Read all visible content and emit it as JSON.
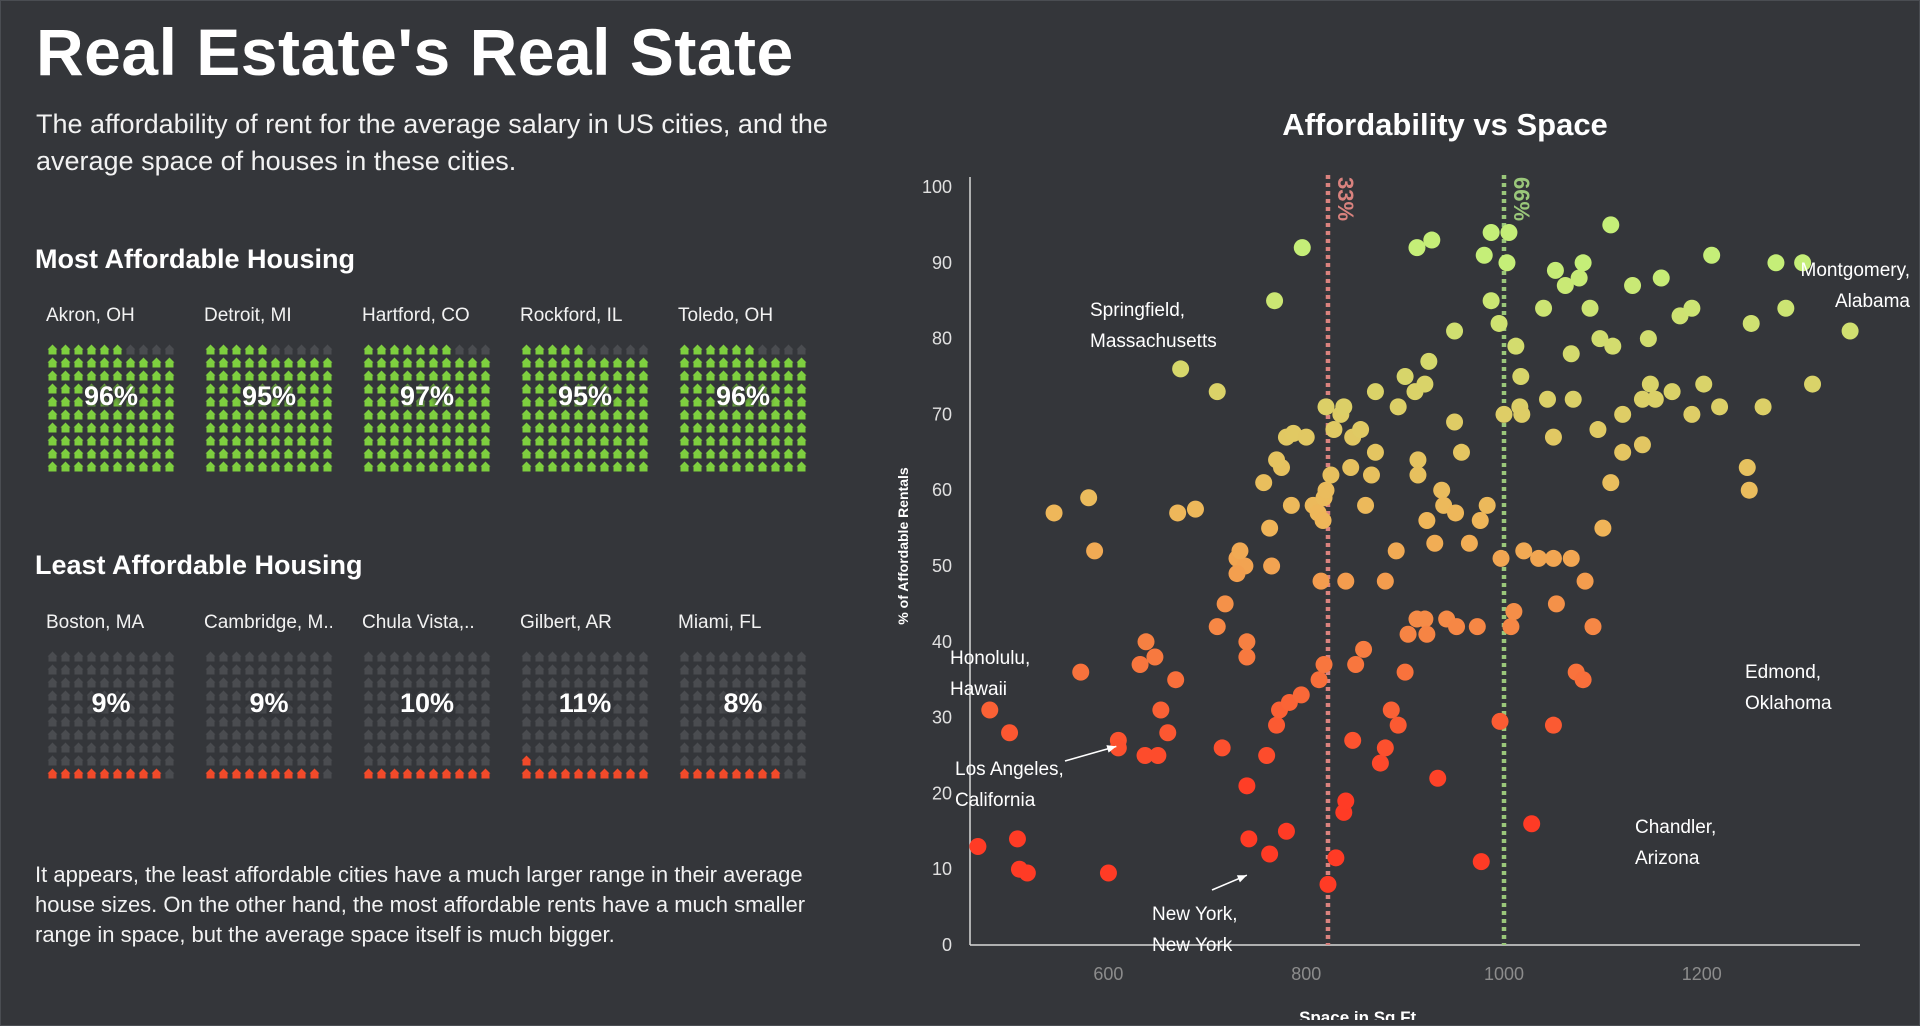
{
  "header": {
    "title": "Real Estate's Real State",
    "subtitle": "The affordability of rent for the average salary in US cities, and the average space of houses in these cities."
  },
  "most_affordable": {
    "title": "Most Affordable Housing",
    "color": "#7ecf3f",
    "cities": [
      {
        "label": "Akron, OH",
        "pct_label": "96%",
        "pct": 96
      },
      {
        "label": "Detroit, MI",
        "pct_label": "95%",
        "pct": 95
      },
      {
        "label": "Hartford, CO",
        "pct_label": "97%",
        "pct": 97
      },
      {
        "label": "Rockford, IL",
        "pct_label": "95%",
        "pct": 95
      },
      {
        "label": "Toledo, OH",
        "pct_label": "96%",
        "pct": 96
      }
    ]
  },
  "least_affordable": {
    "title": "Least Affordable Housing",
    "color": "#f14a2a",
    "cities": [
      {
        "label": "Boston, MA",
        "pct_label": "9%",
        "pct": 9
      },
      {
        "label": "Cambridge, M..",
        "pct_label": "9%",
        "pct": 9
      },
      {
        "label": "Chula Vista,..",
        "pct_label": "10%",
        "pct": 10
      },
      {
        "label": "Gilbert, AR",
        "pct_label": "11%",
        "pct": 11
      },
      {
        "label": "Miami, FL",
        "pct_label": "8%",
        "pct": 8
      }
    ]
  },
  "empty_icon_color": "#4a4c50",
  "house_icon": "house-icon",
  "note": "It appears, the least affordable cities have a much larger range in their average house sizes. On the other hand, the most affordable rents have a much smaller range in space, but the average space itself is much bigger.",
  "chart_data": {
    "type": "scatter",
    "title": "Affordability vs Space",
    "xlabel": "Space in Sq Ft.",
    "ylabel": "% of Affordable Rentals",
    "xlim": [
      460,
      1360
    ],
    "ylim": [
      0,
      100
    ],
    "xticks": [
      600,
      800,
      1000,
      1200
    ],
    "yticks": [
      0,
      10,
      20,
      30,
      40,
      50,
      60,
      70,
      80,
      90,
      100
    ],
    "grid": false,
    "color_low": "#ff3b25",
    "color_mid": "#f0b458",
    "color_high": "#c5ee78",
    "reference_lines": [
      {
        "x": 822,
        "label": "33%",
        "color": "#d9827e"
      },
      {
        "x": 1000,
        "label": "66%",
        "color": "#9ac77a"
      }
    ],
    "annotations": [
      {
        "lines": [
          "Springfield,",
          "Massachusetts"
        ],
        "x": 670,
        "y": 76
      },
      {
        "lines": [
          "Montgomery,",
          "Alabama"
        ],
        "x": 1355,
        "y": 81
      },
      {
        "lines": [
          "Honolulu,",
          "Hawaii"
        ],
        "x": 480,
        "y": 31
      },
      {
        "lines": [
          "Los Angeles,",
          "California"
        ],
        "x": 610,
        "y": 27
      },
      {
        "lines": [
          "New York,",
          "New York"
        ],
        "x": 742,
        "y": 10
      },
      {
        "lines": [
          "Edmond,",
          "Oklahoma"
        ],
        "x": 1277,
        "y": 38
      },
      {
        "lines": [
          "Chandler,",
          "Arizona"
        ],
        "x": 1163,
        "y": 17
      }
    ],
    "points": [
      [
        468,
        13
      ],
      [
        480,
        31
      ],
      [
        500,
        28
      ],
      [
        508,
        14
      ],
      [
        510,
        10
      ],
      [
        518,
        9.5
      ],
      [
        600,
        9.5
      ],
      [
        610,
        27
      ],
      [
        610,
        26
      ],
      [
        637,
        25
      ],
      [
        650,
        25
      ],
      [
        660,
        28
      ],
      [
        632,
        37
      ],
      [
        647,
        38
      ],
      [
        653,
        31
      ],
      [
        668,
        35
      ],
      [
        638,
        40
      ],
      [
        572,
        36
      ],
      [
        715,
        26
      ],
      [
        740,
        21
      ],
      [
        740,
        38
      ],
      [
        740,
        40
      ],
      [
        760,
        25
      ],
      [
        770,
        29
      ],
      [
        773,
        31
      ],
      [
        780,
        15
      ],
      [
        742,
        14
      ],
      [
        763,
        12
      ],
      [
        783,
        32
      ],
      [
        795,
        33
      ],
      [
        813,
        35
      ],
      [
        818,
        37
      ],
      [
        822,
        8
      ],
      [
        830,
        11.5
      ],
      [
        838,
        17.5
      ],
      [
        840,
        19
      ],
      [
        847,
        27
      ],
      [
        850,
        37
      ],
      [
        858,
        39
      ],
      [
        875,
        24
      ],
      [
        880,
        26
      ],
      [
        886,
        31
      ],
      [
        893,
        29
      ],
      [
        903,
        41
      ],
      [
        912,
        43
      ],
      [
        920,
        43
      ],
      [
        922,
        41
      ],
      [
        933,
        22
      ],
      [
        942,
        43
      ],
      [
        952,
        42
      ],
      [
        973,
        42
      ],
      [
        977,
        11
      ],
      [
        996,
        29.5
      ],
      [
        1007,
        42
      ],
      [
        1010,
        44
      ],
      [
        1028,
        16
      ],
      [
        1050,
        29
      ],
      [
        1053,
        45
      ],
      [
        1073,
        36
      ],
      [
        1080,
        35
      ],
      [
        1082,
        48
      ],
      [
        1090,
        42
      ],
      [
        710,
        42
      ],
      [
        718,
        45
      ],
      [
        730,
        51
      ],
      [
        738,
        50
      ],
      [
        730,
        49
      ],
      [
        765,
        50
      ],
      [
        815,
        48
      ],
      [
        840,
        48
      ],
      [
        880,
        48
      ],
      [
        900,
        36
      ],
      [
        545,
        57
      ],
      [
        580,
        59
      ],
      [
        586,
        52
      ],
      [
        670,
        57
      ],
      [
        688,
        57.5
      ],
      [
        733,
        52
      ],
      [
        757,
        61
      ],
      [
        763,
        55
      ],
      [
        775,
        63
      ],
      [
        785,
        58
      ],
      [
        807,
        58
      ],
      [
        812,
        57
      ],
      [
        817,
        56
      ],
      [
        818,
        59
      ],
      [
        820,
        60
      ],
      [
        825,
        62
      ],
      [
        845,
        63
      ],
      [
        860,
        58
      ],
      [
        866,
        62
      ],
      [
        870,
        65
      ],
      [
        891,
        52
      ],
      [
        913,
        64
      ],
      [
        913,
        62
      ],
      [
        922,
        56
      ],
      [
        930,
        53
      ],
      [
        937,
        60
      ],
      [
        939,
        58
      ],
      [
        951,
        57
      ],
      [
        957,
        65
      ],
      [
        965,
        53
      ],
      [
        976,
        56
      ],
      [
        983,
        58
      ],
      [
        997,
        51
      ],
      [
        1020,
        52
      ],
      [
        1035,
        51
      ],
      [
        1050,
        51
      ],
      [
        1068,
        51
      ],
      [
        1100,
        55
      ],
      [
        1108,
        61
      ],
      [
        1120,
        65
      ],
      [
        1140,
        66
      ],
      [
        1246,
        63
      ],
      [
        1248,
        60
      ],
      [
        770,
        64
      ],
      [
        780,
        67
      ],
      [
        787,
        67.5
      ],
      [
        800,
        67
      ],
      [
        820,
        71
      ],
      [
        828,
        68
      ],
      [
        835,
        70
      ],
      [
        838,
        71
      ],
      [
        847,
        67
      ],
      [
        855,
        68
      ],
      [
        870,
        73
      ],
      [
        893,
        71
      ],
      [
        900,
        75
      ],
      [
        910,
        73
      ],
      [
        920,
        74
      ],
      [
        950,
        69
      ],
      [
        1000,
        70
      ],
      [
        1016,
        71
      ],
      [
        1018,
        70
      ],
      [
        1044,
        72
      ],
      [
        1050,
        67
      ],
      [
        1070,
        72
      ],
      [
        1095,
        68
      ],
      [
        1120,
        70
      ],
      [
        1140,
        72
      ],
      [
        1148,
        74
      ],
      [
        1153,
        72
      ],
      [
        1170,
        73
      ],
      [
        1190,
        70
      ],
      [
        1202,
        74
      ],
      [
        1218,
        71
      ],
      [
        1262,
        71
      ],
      [
        1312,
        74
      ],
      [
        710,
        73
      ],
      [
        673,
        76
      ],
      [
        768,
        85
      ],
      [
        796,
        92
      ],
      [
        912,
        92
      ],
      [
        927,
        93
      ],
      [
        924,
        77
      ],
      [
        950,
        81
      ],
      [
        980,
        91
      ],
      [
        987,
        94
      ],
      [
        987,
        85
      ],
      [
        995,
        82
      ],
      [
        1003,
        90
      ],
      [
        1005,
        94
      ],
      [
        1017,
        75
      ],
      [
        1012,
        79
      ],
      [
        1040,
        84
      ],
      [
        1052,
        89
      ],
      [
        1062,
        87
      ],
      [
        1068,
        78
      ],
      [
        1076,
        88
      ],
      [
        1080,
        90
      ],
      [
        1087,
        84
      ],
      [
        1097,
        80
      ],
      [
        1108,
        95
      ],
      [
        1110,
        79
      ],
      [
        1130,
        87
      ],
      [
        1146,
        80
      ],
      [
        1159,
        88
      ],
      [
        1178,
        83
      ],
      [
        1190,
        84
      ],
      [
        1210,
        91
      ],
      [
        1250,
        82
      ],
      [
        1275,
        90
      ],
      [
        1285,
        84
      ],
      [
        1302,
        90
      ],
      [
        1350,
        81
      ]
    ]
  }
}
